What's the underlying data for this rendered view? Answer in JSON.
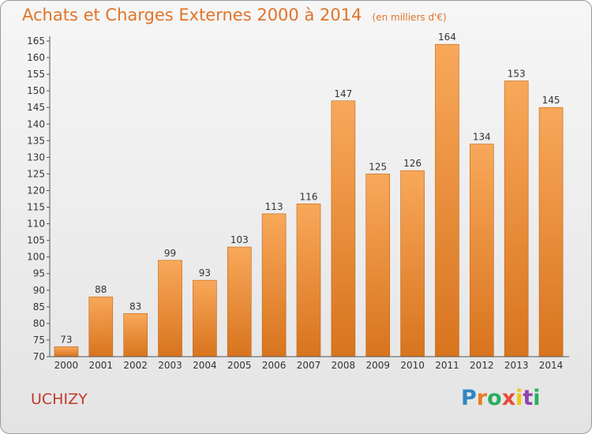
{
  "header": {
    "title": "Achats et Charges Externes 2000 à 2014",
    "subtitle": "(en milliers d'€)"
  },
  "commune": "UCHIZY",
  "logo": {
    "letters": [
      "P",
      "r",
      "o",
      "x",
      "i",
      "t",
      "i"
    ],
    "colors": [
      "#2e86c1",
      "#e67e22",
      "#27ae60",
      "#e74c3c",
      "#f1c40f",
      "#8e44ad",
      "#27ae60"
    ]
  },
  "colors": {
    "bar_light": "#f8a85a",
    "bar_dark": "#d8741e",
    "bar_border": "#c06418",
    "axis": "#555555",
    "text": "#333333"
  },
  "chart_data": {
    "type": "bar",
    "categories": [
      "2000",
      "2001",
      "2002",
      "2003",
      "2004",
      "2005",
      "2006",
      "2007",
      "2008",
      "2009",
      "2010",
      "2011",
      "2012",
      "2013",
      "2014"
    ],
    "values": [
      73,
      88,
      83,
      99,
      93,
      103,
      113,
      116,
      147,
      125,
      126,
      164,
      134,
      153,
      145
    ],
    "yticks": [
      70,
      75,
      80,
      85,
      90,
      95,
      100,
      105,
      110,
      115,
      120,
      125,
      130,
      135,
      140,
      145,
      150,
      155,
      160,
      165
    ],
    "ylim": [
      70,
      165
    ],
    "grid": false,
    "data_labels": true
  }
}
